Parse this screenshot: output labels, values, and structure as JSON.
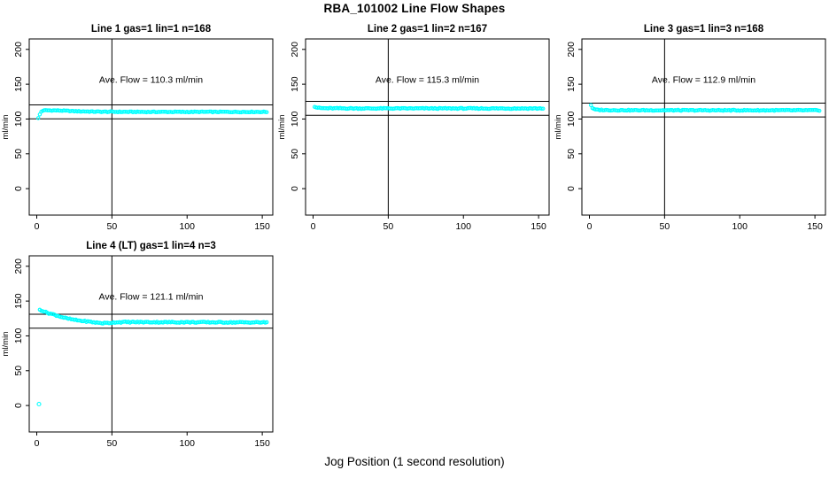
{
  "page": {
    "title": "RBA_101002  Line Flow Shapes",
    "x_axis_label": "Jog Position (1 second resolution)",
    "background_color": "#FFFFFF",
    "point_color": "#00FFFF",
    "line_color": "#000000"
  },
  "chart_data": [
    {
      "type": "scatter",
      "title": "Line 1 gas=1 lin=1 n=168",
      "ylabel": "ml/min",
      "annotation": {
        "text": "Ave. Flow =  110.3  ml/min",
        "x": 76,
        "y": 152
      },
      "ave_flow_ml_min": 110.3,
      "n": 168,
      "x_ticks": [
        0,
        50,
        100,
        150
      ],
      "y_ticks": [
        0,
        50,
        100,
        150,
        200
      ],
      "xlim": [
        -5,
        157
      ],
      "ylim": [
        -38,
        215
      ],
      "vline_x": 50,
      "hlines_y": [
        120.3,
        100.3
      ],
      "x_start": 1,
      "x_end": 153,
      "jitter": 0.6,
      "series_anchors": [
        [
          1,
          101
        ],
        [
          2,
          106.5
        ],
        [
          3,
          110.5
        ],
        [
          4,
          112
        ],
        [
          6,
          112.5
        ],
        [
          14,
          112.3
        ],
        [
          25,
          111.2
        ],
        [
          40,
          110.5
        ],
        [
          60,
          110.2
        ],
        [
          153,
          110.2
        ]
      ],
      "extra_points": []
    },
    {
      "type": "scatter",
      "title": "Line 2 gas=1 lin=2 n=167",
      "ylabel": "ml/min",
      "annotation": {
        "text": "Ave. Flow =  115.3  ml/min",
        "x": 76,
        "y": 152
      },
      "ave_flow_ml_min": 115.3,
      "n": 167,
      "x_ticks": [
        0,
        50,
        100,
        150
      ],
      "y_ticks": [
        0,
        50,
        100,
        150,
        200
      ],
      "xlim": [
        -5,
        157
      ],
      "ylim": [
        -38,
        215
      ],
      "vline_x": 50,
      "hlines_y": [
        125.3,
        105.3
      ],
      "x_start": 1,
      "x_end": 153,
      "jitter": 0.7,
      "series_anchors": [
        [
          1,
          118
        ],
        [
          2,
          116.8
        ],
        [
          4,
          115.8
        ],
        [
          10,
          115.4
        ],
        [
          30,
          115.2
        ],
        [
          153,
          115.2
        ]
      ],
      "extra_points": []
    },
    {
      "type": "scatter",
      "title": "Line 3 gas=1 lin=3 n=168",
      "ylabel": "ml/min",
      "annotation": {
        "text": "Ave. Flow =  112.9  ml/min",
        "x": 76,
        "y": 152
      },
      "ave_flow_ml_min": 112.9,
      "n": 168,
      "x_ticks": [
        0,
        50,
        100,
        150
      ],
      "y_ticks": [
        0,
        50,
        100,
        150,
        200
      ],
      "xlim": [
        -5,
        157
      ],
      "ylim": [
        -38,
        215
      ],
      "vline_x": 50,
      "hlines_y": [
        122.9,
        102.9
      ],
      "x_start": 1,
      "x_end": 153,
      "jitter": 0.7,
      "series_anchors": [
        [
          1,
          120
        ],
        [
          2,
          116
        ],
        [
          3,
          114
        ],
        [
          5,
          113.2
        ],
        [
          12,
          112.8
        ],
        [
          30,
          112.6
        ],
        [
          153,
          112.5
        ]
      ],
      "extra_points": []
    },
    {
      "type": "scatter",
      "title": "Line 4 (LT) gas=1 lin=4 n=3",
      "ylabel": "ml/min",
      "annotation": {
        "text": "Ave. Flow =  121.1  ml/min",
        "x": 76,
        "y": 152
      },
      "ave_flow_ml_min": 121.1,
      "n": 3,
      "x_ticks": [
        0,
        50,
        100,
        150
      ],
      "y_ticks": [
        0,
        50,
        100,
        150,
        200
      ],
      "xlim": [
        -5,
        157
      ],
      "ylim": [
        -38,
        215
      ],
      "vline_x": 50,
      "hlines_y": [
        131.1,
        111.1
      ],
      "x_start": 2,
      "x_end": 153,
      "jitter": 0.8,
      "series_anchors": [
        [
          2,
          137.5
        ],
        [
          4,
          136
        ],
        [
          6,
          134
        ],
        [
          8,
          132.5
        ],
        [
          10,
          131.5
        ],
        [
          13,
          129.5
        ],
        [
          16,
          127.5
        ],
        [
          20,
          125
        ],
        [
          25,
          123
        ],
        [
          30,
          121.5
        ],
        [
          35,
          120.3
        ],
        [
          40,
          119
        ],
        [
          44,
          118.3
        ],
        [
          48,
          118.6
        ],
        [
          52,
          119.5
        ],
        [
          60,
          119.8
        ],
        [
          80,
          119.7
        ],
        [
          100,
          119.6
        ],
        [
          153,
          119.3
        ]
      ],
      "extra_points": [
        [
          1.5,
          2
        ]
      ]
    }
  ]
}
